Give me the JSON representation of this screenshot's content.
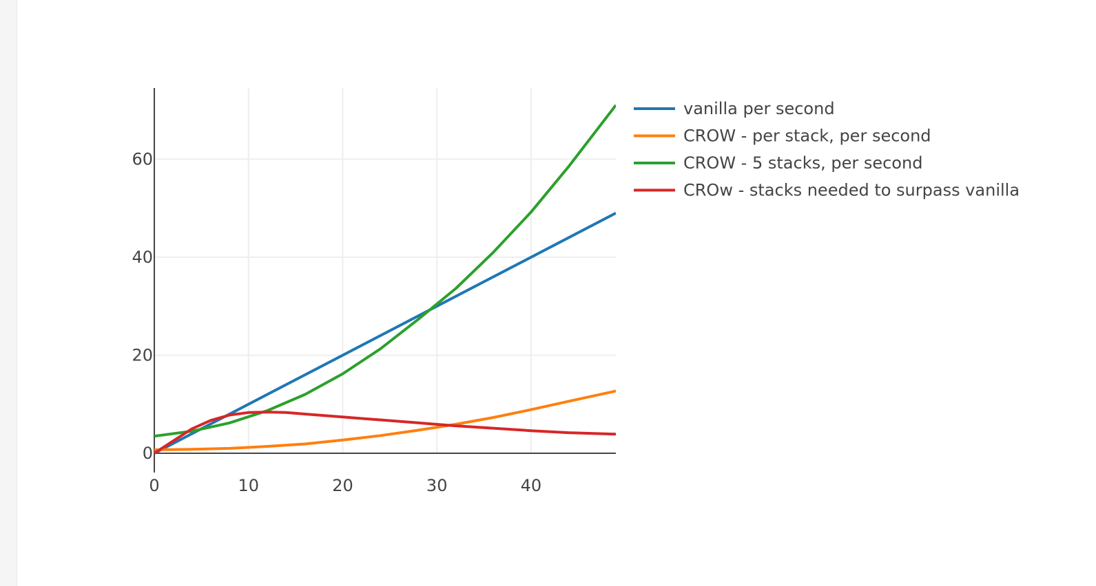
{
  "chart_data": {
    "type": "line",
    "title": "",
    "xlabel": "",
    "ylabel": "",
    "xlim": [
      0,
      49
    ],
    "ylim": [
      0,
      74.5
    ],
    "x_ticks": [
      0,
      10,
      20,
      30,
      40
    ],
    "y_ticks": [
      0,
      20,
      40,
      60
    ],
    "grid": true,
    "legend_position": "right-top",
    "series": [
      {
        "name": "vanilla per second",
        "color": "#1f77b4",
        "x": [
          0,
          49
        ],
        "y": [
          0,
          49
        ]
      },
      {
        "name": "CROW - per stack, per second",
        "color": "#ff7f0e",
        "x": [
          0,
          4,
          8,
          12,
          16,
          20,
          24,
          28,
          32,
          36,
          40,
          44,
          49
        ],
        "y": [
          0.7,
          0.8,
          1.0,
          1.4,
          1.9,
          2.7,
          3.6,
          4.7,
          5.9,
          7.3,
          8.9,
          10.6,
          12.7
        ]
      },
      {
        "name": "CROW - 5 stacks, per second",
        "color": "#2ca02c",
        "x": [
          0,
          4,
          8,
          12,
          16,
          20,
          24,
          28,
          32,
          36,
          40,
          44,
          49
        ],
        "y": [
          3.5,
          4.5,
          6.2,
          8.7,
          12.0,
          16.2,
          21.3,
          27.3,
          33.6,
          41.0,
          49.2,
          58.5,
          71.0
        ]
      },
      {
        "name": "CROw - stacks needed to surpass vanilla",
        "color": "#d62728",
        "x": [
          0,
          2,
          4,
          6,
          8,
          10,
          12,
          14,
          16,
          20,
          24,
          28,
          32,
          36,
          40,
          44,
          49
        ],
        "y": [
          0,
          2.5,
          5.0,
          6.7,
          7.8,
          8.3,
          8.4,
          8.3,
          8.0,
          7.4,
          6.8,
          6.2,
          5.6,
          5.1,
          4.6,
          4.2,
          3.9
        ]
      }
    ]
  }
}
